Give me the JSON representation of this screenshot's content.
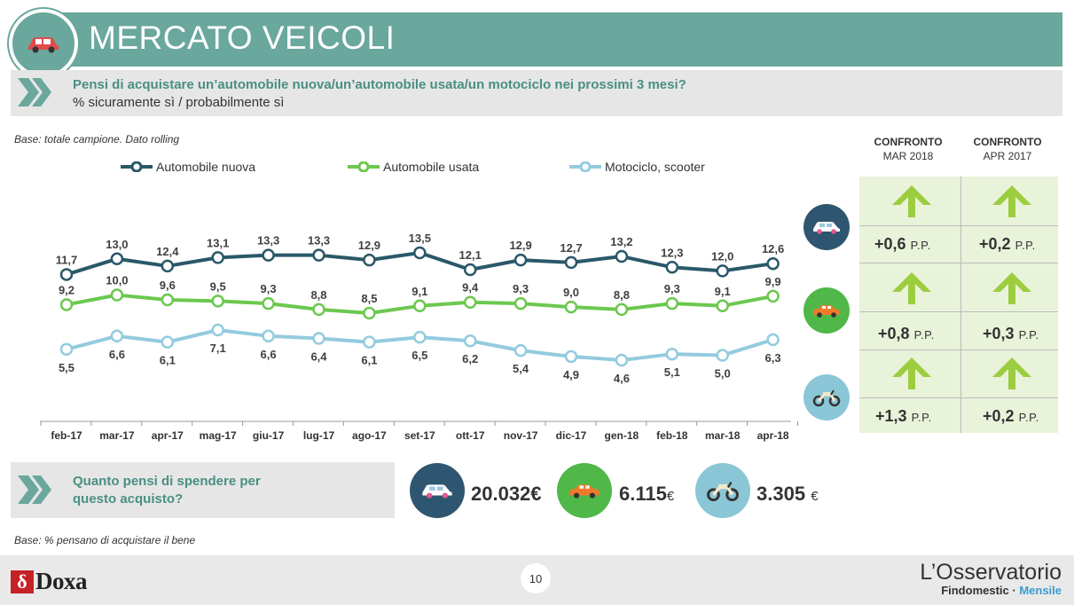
{
  "header": {
    "title": "MERCATO VEICOLI"
  },
  "question": {
    "title": "Pensi di acquistare un’automobile nuova/un’automobile usata/un motociclo nei prossimi 3 mesi?",
    "subtitle": "% sicuramente sì / probabilmente sì"
  },
  "base_note": "Base: totale campione. Dato rolling",
  "chart_data": {
    "type": "line",
    "categories": [
      "feb-17",
      "mar-17",
      "apr-17",
      "mag-17",
      "giu-17",
      "lug-17",
      "ago-17",
      "set-17",
      "ott-17",
      "nov-17",
      "dic-17",
      "gen-18",
      "feb-18",
      "mar-18",
      "apr-18"
    ],
    "series": [
      {
        "name": "Automobile nuova",
        "color": "#2a5868",
        "values": [
          11.7,
          13.0,
          12.4,
          13.1,
          13.3,
          13.3,
          12.9,
          13.5,
          12.1,
          12.9,
          12.7,
          13.2,
          12.3,
          12.0,
          12.6
        ],
        "labels": [
          "11,7",
          "13,0",
          "12,4",
          "13,1",
          "13,3",
          "13,3",
          "12,9",
          "13,5",
          "12,1",
          "12,9",
          "12,7",
          "13,2",
          "12,3",
          "12,0",
          "12,6"
        ]
      },
      {
        "name": "Automobile usata",
        "color": "#6cc84f",
        "values": [
          9.2,
          10.0,
          9.6,
          9.5,
          9.3,
          8.8,
          8.5,
          9.1,
          9.4,
          9.3,
          9.0,
          8.8,
          9.3,
          9.1,
          9.9
        ],
        "labels": [
          "9,2",
          "10,0",
          "9,6",
          "9,5",
          "9,3",
          "8,8",
          "8,5",
          "9,1",
          "9,4",
          "9,3",
          "9,0",
          "8,8",
          "9,3",
          "9,1",
          "9,9"
        ]
      },
      {
        "name": "Motociclo, scooter",
        "color": "#93cbde",
        "values": [
          5.5,
          6.6,
          6.1,
          7.1,
          6.6,
          6.4,
          6.1,
          6.5,
          6.2,
          5.4,
          4.9,
          4.6,
          5.1,
          5.0,
          6.3
        ],
        "labels": [
          "5,5",
          "6,6",
          "6,1",
          "7,1",
          "6,6",
          "6,4",
          "6,1",
          "6,5",
          "6,2",
          "5,4",
          "4,9",
          "4,6",
          "5,1",
          "5,0",
          "6,3"
        ]
      }
    ],
    "grid": false,
    "legend": "top"
  },
  "comparison": {
    "col1": {
      "label": "CONFRONTO",
      "sub": "MAR 2018"
    },
    "col2": {
      "label": "CONFRONTO",
      "sub": "APR 2017"
    },
    "unit": "P.P.",
    "rows": [
      {
        "vehicle": "car-new-icon",
        "v1": "+0,6",
        "v2": "+0,2"
      },
      {
        "vehicle": "car-used-icon",
        "v1": "+0,8",
        "v2": "+0,3"
      },
      {
        "vehicle": "motorbike-icon",
        "v1": "+1,3",
        "v2": "+0,2"
      }
    ],
    "arrow_color": "#9ccd3f"
  },
  "spend": {
    "question": "Quanto pensi di spendere per questo acquisto?",
    "car_new": {
      "amount": "20.032",
      "currency": "€"
    },
    "car_used": {
      "amount": "6.115",
      "currency": "€"
    },
    "moto": {
      "amount": "3.305",
      "currency": "€"
    }
  },
  "base_note2": "Base: % pensano di acquistare il bene",
  "footer": {
    "brand_mark": "δ",
    "brand": "Doxa",
    "page": "10",
    "osserv_title": "L’Osservatorio",
    "osserv_sub1": "Findomestic · ",
    "osserv_sub2": "Mensile"
  }
}
